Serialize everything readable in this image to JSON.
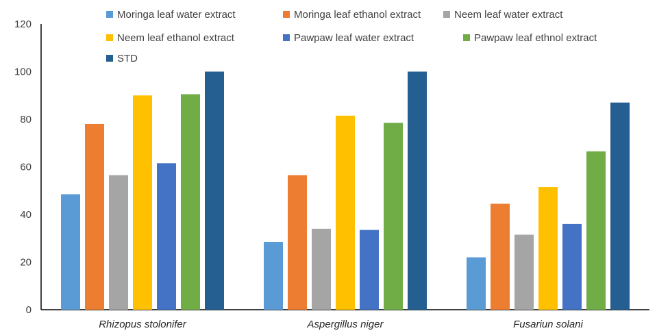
{
  "chart_data": {
    "type": "bar",
    "categories": [
      "Rhizopus stolonifer",
      "Aspergillus niger",
      "Fusariun solani"
    ],
    "series": [
      {
        "name": "Moringa leaf water extract",
        "color": "#5B9BD5",
        "values": [
          48.5,
          28.5,
          22
        ]
      },
      {
        "name": "Moringa leaf ethanol extract",
        "color": "#ED7D31",
        "values": [
          78,
          56.5,
          44.5
        ]
      },
      {
        "name": "Neem leaf water extract",
        "color": "#A5A5A5",
        "values": [
          56.5,
          34,
          31.5
        ]
      },
      {
        "name": "Neem leaf ethanol extract",
        "color": "#FFC000",
        "values": [
          90,
          81.5,
          51.5
        ]
      },
      {
        "name": "Pawpaw leaf water extract",
        "color": "#4472C4",
        "values": [
          61.5,
          33.5,
          36
        ]
      },
      {
        "name": "Pawpaw leaf ethnol extract",
        "color": "#70AD47",
        "values": [
          90.5,
          78.5,
          66.5
        ]
      },
      {
        "name": "STD",
        "color": "#255E91",
        "values": [
          100,
          100,
          87
        ]
      }
    ],
    "yticks": [
      0,
      20,
      40,
      60,
      80,
      100,
      120
    ],
    "ylim": [
      0,
      120
    ],
    "title": "",
    "xlabel": "",
    "ylabel": "",
    "legend": "top",
    "grid": false
  }
}
